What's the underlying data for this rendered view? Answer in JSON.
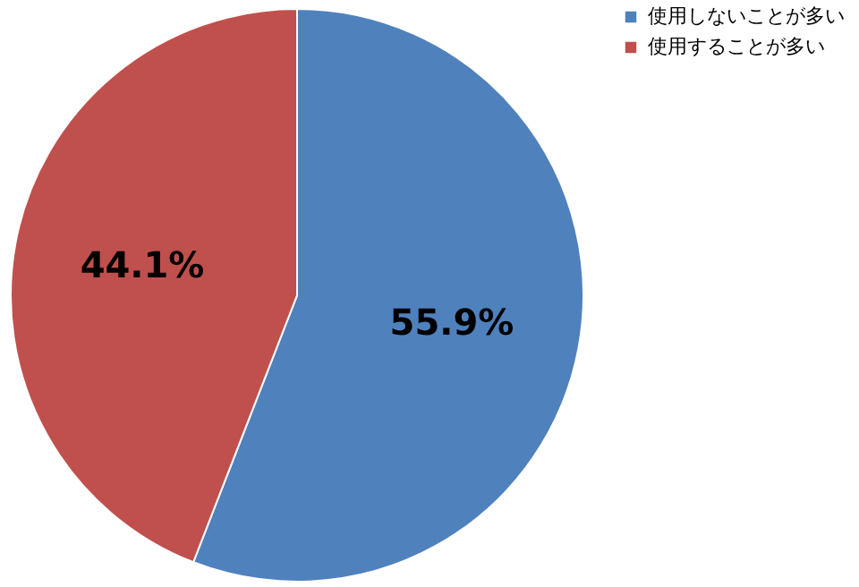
{
  "chart_data": {
    "type": "pie",
    "categories": [
      "使用しないことが多い",
      "使用することが多い"
    ],
    "values": [
      55.9,
      44.1
    ],
    "colors": [
      "#4f81bd",
      "#c0504d"
    ],
    "value_labels": [
      "55.9%",
      "44.1%"
    ],
    "legend": "right"
  }
}
